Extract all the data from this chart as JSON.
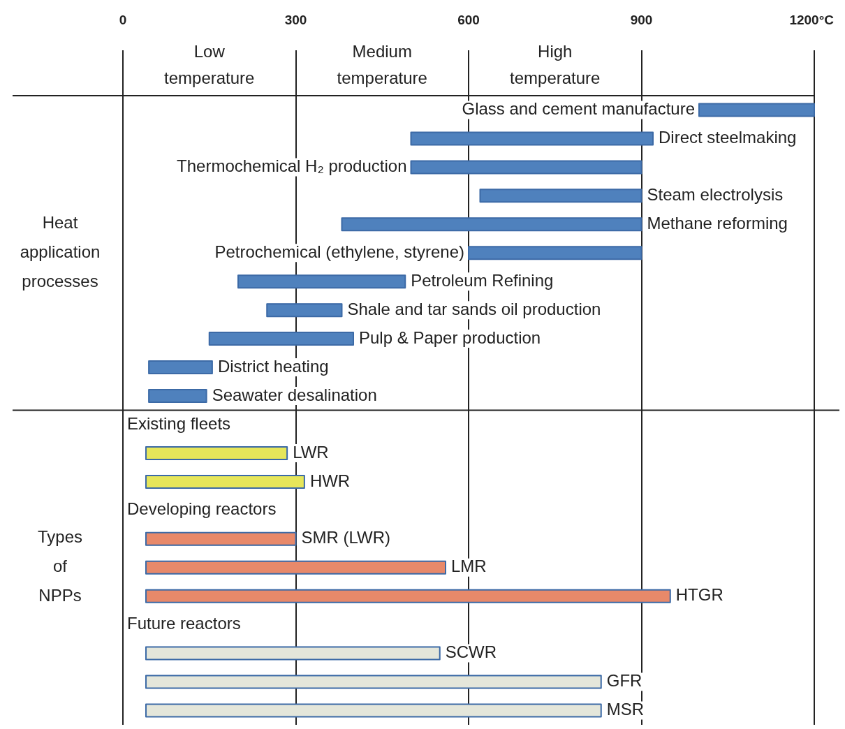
{
  "chart_data": {
    "type": "bar",
    "orientation": "horizontal",
    "categories": [
      "Glass and cement manufacture",
      "Direct steelmaking",
      "Thermochemical H₂ production",
      "Steam electrolysis",
      "Methane reforming",
      "Petrochemical (ethylene, styrene)",
      "Petroleum Refining",
      "Shale and tar sands oil production",
      "Pulp & Paper production",
      "District heating",
      "Seawater desalination",
      "Existing fleets",
      "LWR",
      "HWR",
      "Developing reactors",
      "SMR (LWR)",
      "LMR",
      "HTGR",
      "Future reactors",
      "SCWR",
      "GFR",
      "MSR"
    ],
    "base": [
      1000,
      500,
      500,
      620,
      380,
      600,
      200,
      250,
      150,
      45,
      45,
      null,
      40,
      40,
      null,
      40,
      40,
      40,
      null,
      40,
      40,
      40
    ],
    "values": [
      200,
      420,
      400,
      280,
      520,
      300,
      290,
      130,
      250,
      110,
      100,
      null,
      245,
      275,
      null,
      260,
      520,
      910,
      null,
      510,
      790,
      790
    ],
    "colors": [
      "#4f81bd",
      "#4f81bd",
      "#4f81bd",
      "#4f81bd",
      "#4f81bd",
      "#4f81bd",
      "#4f81bd",
      "#4f81bd",
      "#4f81bd",
      "#4f81bd",
      "#4f81bd",
      null,
      "#e6e65a",
      "#e6e65a",
      null,
      "#e8896a",
      "#e8896a",
      "#e8896a",
      null,
      "#e4e6da",
      "#e4e6da",
      "#e4e6da"
    ],
    "xlim": [
      0,
      1200
    ],
    "xticks": [
      0,
      300,
      600,
      900,
      {
        "value": 1200,
        "label": "1200°C"
      }
    ],
    "annotations": [
      "Low temperature",
      "Medium temperature",
      "High temperature",
      "Heat application processes",
      "Types of NPPs"
    ],
    "grid": "x",
    "tick_labels": "x",
    "legend": false
  }
}
